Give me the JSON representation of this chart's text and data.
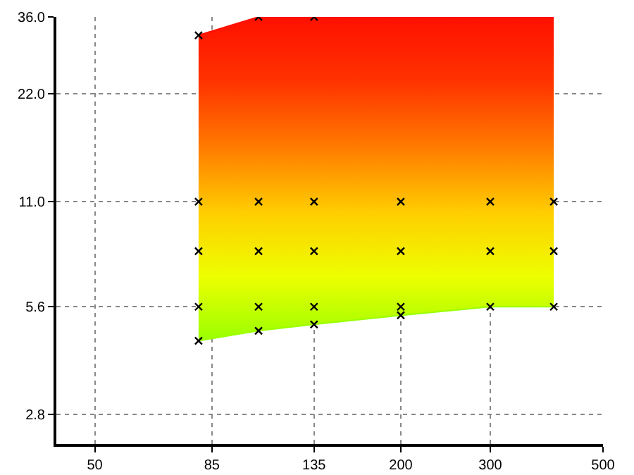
{
  "chart_data": {
    "type": "area",
    "log": "xy",
    "grid": true,
    "xlim": [
      42,
      500
    ],
    "xticks": [
      50,
      85,
      135,
      200,
      300,
      500
    ],
    "ylim": [
      2.32,
      36
    ],
    "yticks": [
      {
        "value": 2.8,
        "label": "2.8"
      },
      {
        "value": 5.6,
        "label": "5.6"
      },
      {
        "value": 11,
        "label": "11.0"
      },
      {
        "value": 22,
        "label": "22.0"
      },
      {
        "value": 36,
        "label": "36.0"
      }
    ],
    "series": [
      {
        "type": "line",
        "color": "#99ff00",
        "x": [
          80,
          105,
          135,
          200,
          300,
          400
        ],
        "values": [
          4.5,
          4.8,
          5.0,
          5.3,
          5.6,
          5.6
        ]
      },
      {
        "x": [
          80,
          105,
          135,
          200,
          300,
          400
        ],
        "values": [
          32,
          36,
          36,
          36,
          36,
          36
        ],
        "colors": [
          "#99ff00",
          "#eeff00",
          "#ffcc00",
          "#ff7a00",
          "#ff3300",
          "#ff1000"
        ]
      },
      {
        "type": "scatter",
        "marker": "cross",
        "color": "#000000",
        "x": [
          80,
          80,
          80,
          80,
          80,
          105,
          105,
          105,
          105,
          105,
          135,
          135,
          135,
          135,
          135,
          200,
          200,
          200,
          200,
          300,
          300,
          300,
          400,
          400,
          400
        ],
        "values": [
          32,
          11,
          8,
          5.6,
          4.5,
          36,
          11,
          8,
          5.6,
          4.8,
          36,
          11,
          8,
          5.6,
          5.0,
          11,
          8,
          5.6,
          5.3,
          11,
          8,
          5.6,
          11,
          8,
          5.6
        ]
      }
    ]
  }
}
